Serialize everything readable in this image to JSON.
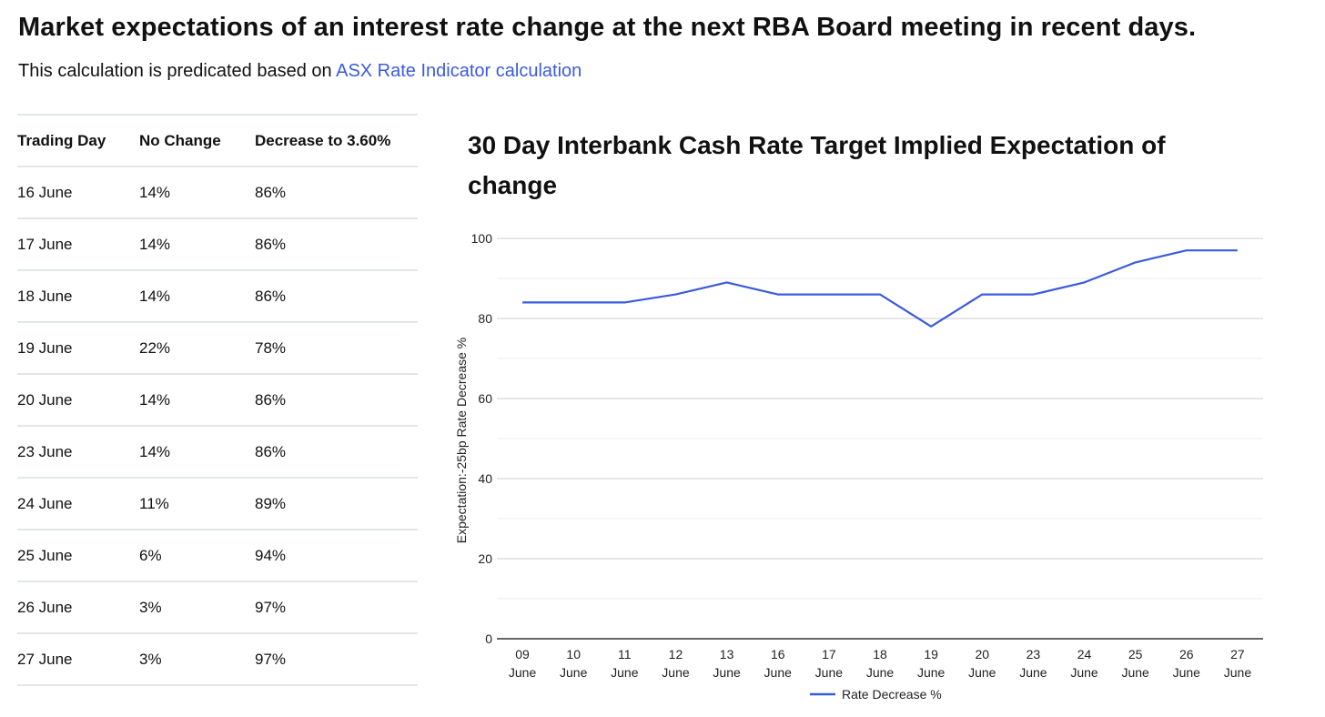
{
  "page": {
    "title": "Market expectations of an interest rate change at the next RBA Board meeting in recent days.",
    "subtitle_prefix": "This calculation is predicated based on",
    "subtitle_link": "ASX Rate Indicator calculation",
    "link_color": "#3b5bdb"
  },
  "table": {
    "headers": [
      "Trading Day",
      "No Change",
      "Decrease to 3.60%"
    ],
    "rows": [
      [
        "16 June",
        "14%",
        "86%"
      ],
      [
        "17 June",
        "14%",
        "86%"
      ],
      [
        "18 June",
        "14%",
        "86%"
      ],
      [
        "19 June",
        "22%",
        "78%"
      ],
      [
        "20 June",
        "14%",
        "86%"
      ],
      [
        "23 June",
        "14%",
        "86%"
      ],
      [
        "24 June",
        "11%",
        "89%"
      ],
      [
        "25 June",
        "6%",
        "94%"
      ],
      [
        "26 June",
        "3%",
        "97%"
      ],
      [
        "27 June",
        "3%",
        "97%"
      ]
    ]
  },
  "chart_data": {
    "type": "line",
    "title": "30 Day Interbank Cash Rate Target Implied Expectation of change",
    "xlabel": "",
    "ylabel": "Expectation:-25bp Rate Decrease %",
    "categories": [
      [
        "09",
        "June"
      ],
      [
        "10",
        "June"
      ],
      [
        "11",
        "June"
      ],
      [
        "12",
        "June"
      ],
      [
        "13",
        "June"
      ],
      [
        "16",
        "June"
      ],
      [
        "17",
        "June"
      ],
      [
        "18",
        "June"
      ],
      [
        "19",
        "June"
      ],
      [
        "20",
        "June"
      ],
      [
        "23",
        "June"
      ],
      [
        "24",
        "June"
      ],
      [
        "25",
        "June"
      ],
      [
        "26",
        "June"
      ],
      [
        "27",
        "June"
      ]
    ],
    "series": [
      {
        "name": "Rate Decrease %",
        "color": "#3b5bdb",
        "values": [
          84,
          84,
          84,
          86,
          89,
          86,
          86,
          86,
          78,
          86,
          86,
          89,
          94,
          97,
          97
        ]
      }
    ],
    "ylim": [
      0,
      100
    ],
    "yticks": [
      0,
      20,
      40,
      60,
      80,
      100
    ],
    "grid": true,
    "legend": "bottom-center"
  }
}
